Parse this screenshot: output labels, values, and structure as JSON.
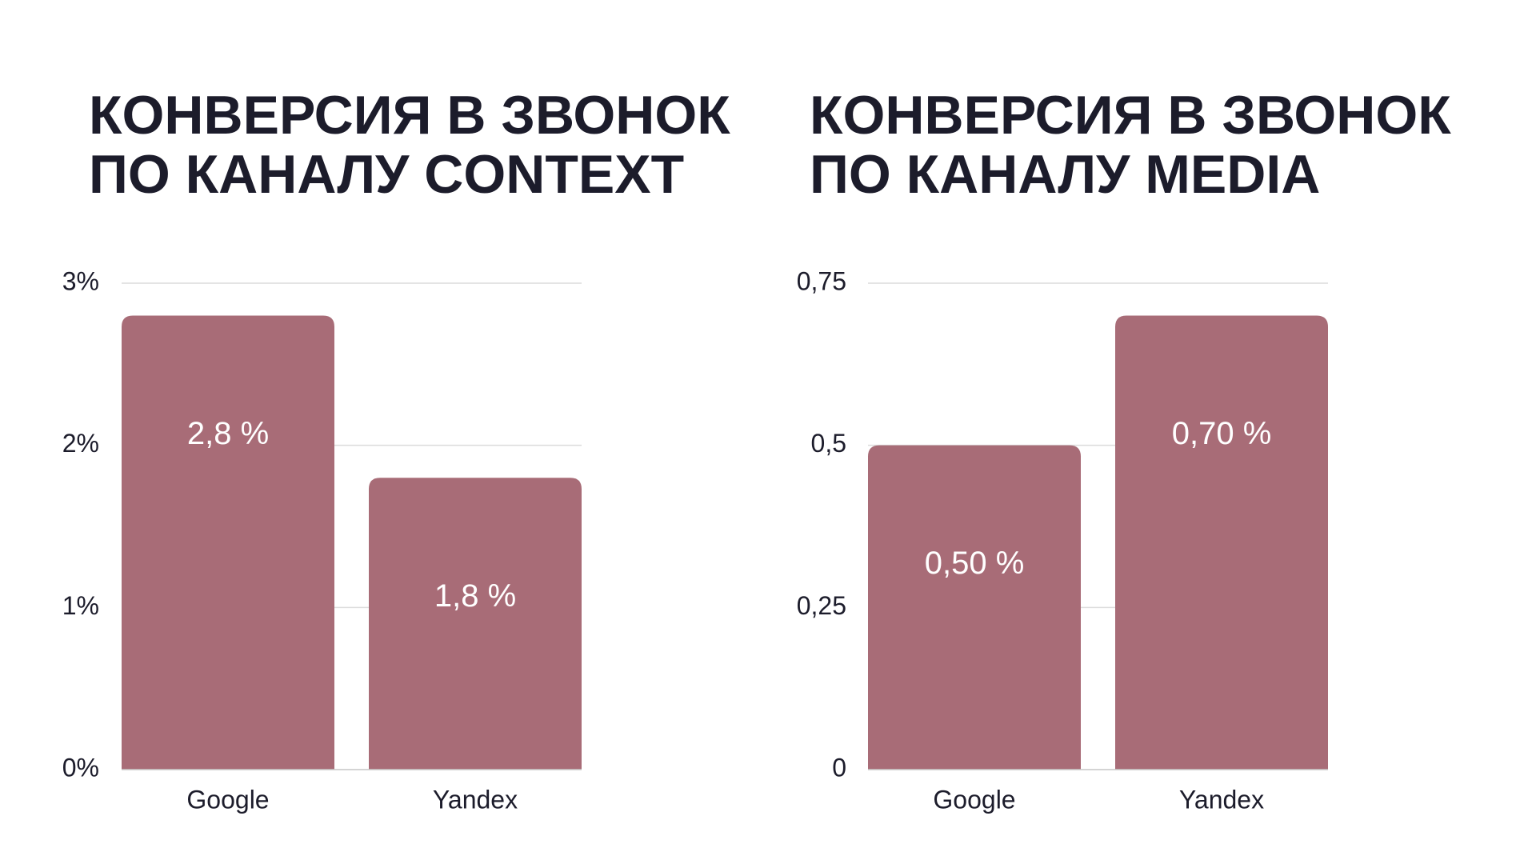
{
  "chart_data": [
    {
      "type": "bar",
      "title": [
        "КОНВЕРСИЯ В ЗВОНОК",
        "ПО КАНАЛУ CONTEXT"
      ],
      "categories": [
        "Google",
        "Yandex"
      ],
      "values": [
        2.8,
        1.8
      ],
      "value_labels": [
        "2,8 %",
        "1,8 %"
      ],
      "color": "#a86c77",
      "ylim": [
        0,
        3
      ],
      "yticks": [
        {
          "value": 0,
          "label": "0%"
        },
        {
          "value": 1,
          "label": "1%"
        },
        {
          "value": 2,
          "label": "2%"
        },
        {
          "value": 3,
          "label": "3%"
        }
      ],
      "grid": true
    },
    {
      "type": "bar",
      "title": [
        "КОНВЕРСИЯ В ЗВОНОК",
        "ПО КАНАЛУ MEDIA"
      ],
      "categories": [
        "Google",
        "Yandex"
      ],
      "values": [
        0.5,
        0.7
      ],
      "value_labels": [
        "0,50 %",
        "0,70 %"
      ],
      "color": "#a86c77",
      "ylim": [
        0,
        0.75
      ],
      "yticks": [
        0,
        {
          "value": 0.25,
          "label": "0,25"
        },
        {
          "value": 0.5,
          "label": "0,5"
        },
        {
          "value": 0.75,
          "label": "0,75"
        }
      ],
      "grid": true
    }
  ]
}
